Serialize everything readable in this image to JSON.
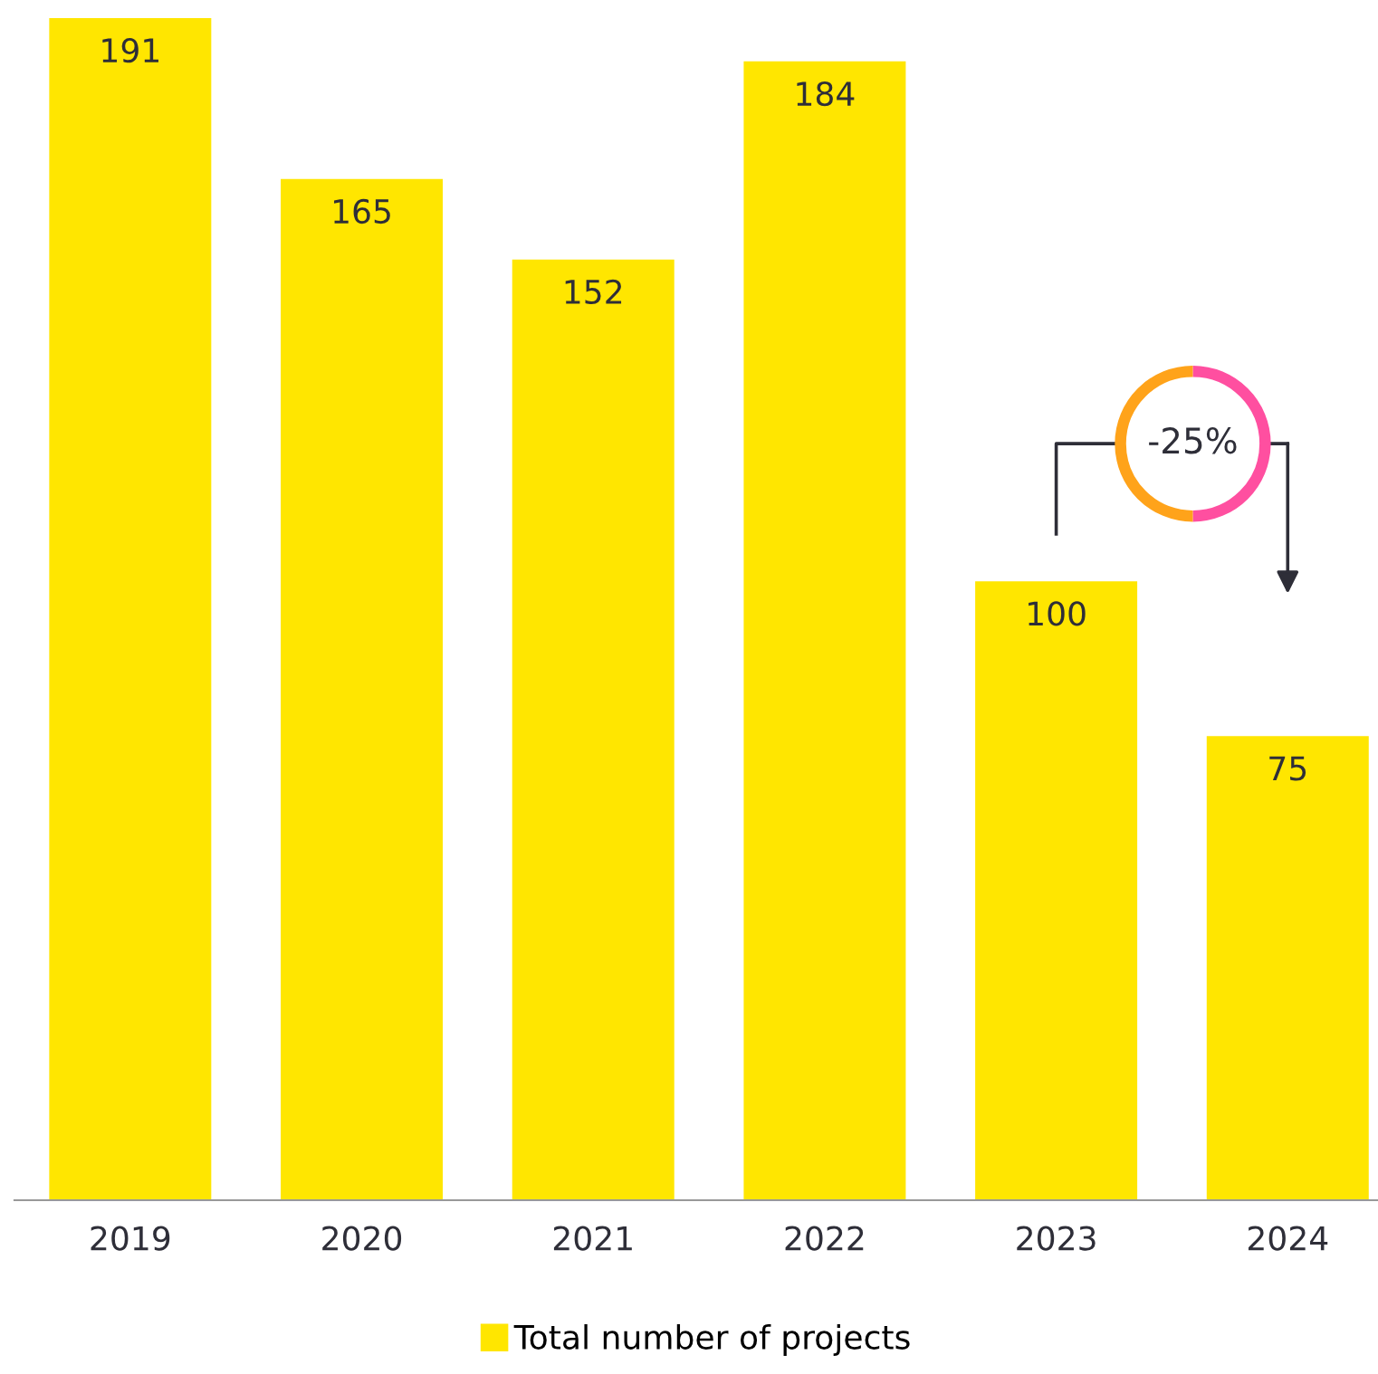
{
  "chart_data": {
    "type": "bar",
    "categories": [
      "2019",
      "2020",
      "2021",
      "2022",
      "2023",
      "2024"
    ],
    "series": [
      {
        "name": "Total number of projects",
        "color": "#ffe600",
        "values": [
          191,
          165,
          152,
          184,
          100,
          75
        ]
      }
    ],
    "data_labels": true,
    "legend": "bottom",
    "annotations": [
      "-25%"
    ]
  }
}
